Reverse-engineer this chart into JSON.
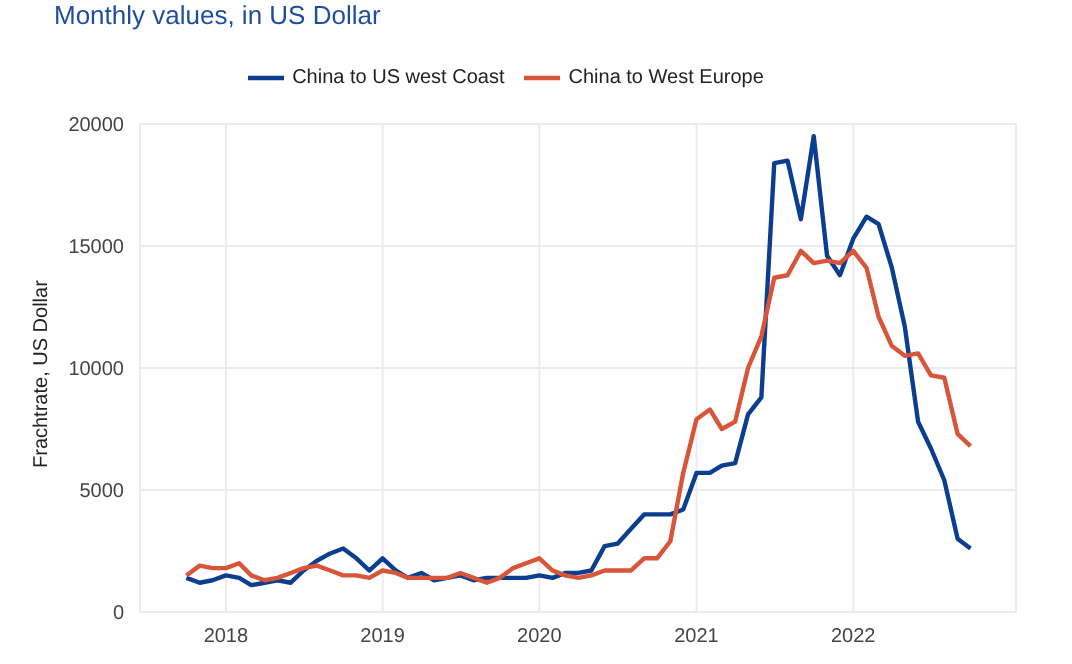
{
  "chart_data": {
    "type": "line",
    "subtitle": "Monthly values, in US Dollar",
    "ylabel": "Frachtrate, US Dollar",
    "x": [
      "2017-10",
      "2017-11",
      "2017-12",
      "2018-01",
      "2018-02",
      "2018-03",
      "2018-04",
      "2018-05",
      "2018-06",
      "2018-07",
      "2018-08",
      "2018-09",
      "2018-10",
      "2018-11",
      "2018-12",
      "2019-01",
      "2019-02",
      "2019-03",
      "2019-04",
      "2019-05",
      "2019-06",
      "2019-07",
      "2019-08",
      "2019-09",
      "2019-10",
      "2019-11",
      "2019-12",
      "2020-01",
      "2020-02",
      "2020-03",
      "2020-04",
      "2020-05",
      "2020-06",
      "2020-07",
      "2020-08",
      "2020-09",
      "2020-10",
      "2020-11",
      "2020-12",
      "2021-01",
      "2021-02",
      "2021-03",
      "2021-04",
      "2021-05",
      "2021-06",
      "2021-07",
      "2021-08",
      "2021-09",
      "2021-10",
      "2021-11",
      "2021-12",
      "2022-01",
      "2022-02",
      "2022-03",
      "2022-04",
      "2022-05",
      "2022-06",
      "2022-07",
      "2022-08",
      "2022-09",
      "2022-10"
    ],
    "series": [
      {
        "name": "China to US west Coast",
        "color": "#0b3d91",
        "values": [
          1400,
          1200,
          1300,
          1500,
          1400,
          1100,
          1200,
          1300,
          1200,
          1700,
          2100,
          2400,
          2600,
          2200,
          1700,
          2200,
          1700,
          1400,
          1600,
          1300,
          1400,
          1500,
          1300,
          1400,
          1400,
          1400,
          1400,
          1500,
          1400,
          1600,
          1600,
          1700,
          2700,
          2800,
          3400,
          4000,
          4000,
          4000,
          4200,
          5700,
          5700,
          6000,
          6100,
          8100,
          8800,
          18400,
          18500,
          16100,
          19500,
          14600,
          13800,
          15300,
          16200,
          15900,
          14100,
          11700,
          7800,
          6700,
          5400,
          3000,
          2600
        ]
      },
      {
        "name": "China to West Europe",
        "color": "#d9553a",
        "values": [
          1500,
          1900,
          1800,
          1800,
          2000,
          1500,
          1300,
          1400,
          1600,
          1800,
          1900,
          1700,
          1500,
          1500,
          1400,
          1700,
          1600,
          1400,
          1400,
          1400,
          1400,
          1600,
          1400,
          1200,
          1400,
          1800,
          2000,
          2200,
          1700,
          1500,
          1400,
          1500,
          1700,
          1700,
          1700,
          2200,
          2200,
          2900,
          5700,
          7900,
          8300,
          7500,
          7800,
          10000,
          11300,
          13700,
          13800,
          14800,
          14300,
          14400,
          14300,
          14800,
          14100,
          12100,
          10900,
          10500,
          10600,
          9700,
          9600,
          7300,
          6800
        ]
      }
    ],
    "xlim": [
      "2017-06-15",
      "2023-01-15"
    ],
    "xticks": [
      "2018",
      "2019",
      "2020",
      "2021",
      "2022"
    ],
    "ylim": [
      0,
      20000
    ],
    "yticks": [
      0,
      5000,
      10000,
      15000,
      20000
    ],
    "grid": true,
    "legend": "top",
    "line_style": "solid",
    "marker": "none"
  }
}
